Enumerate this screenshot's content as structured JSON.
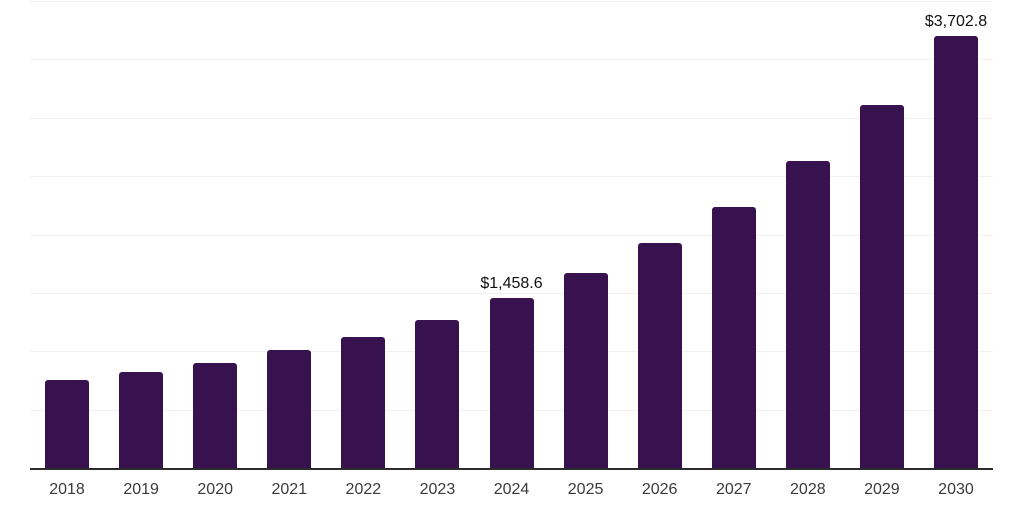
{
  "chart_data": {
    "type": "bar",
    "title": "",
    "xlabel": "",
    "ylabel": "",
    "categories": [
      "2018",
      "2019",
      "2020",
      "2021",
      "2022",
      "2023",
      "2024",
      "2025",
      "2026",
      "2027",
      "2028",
      "2029",
      "2030"
    ],
    "values": [
      750,
      822,
      903,
      1010,
      1126,
      1268,
      1458.6,
      1673,
      1924,
      2238,
      2629,
      3108,
      3702.8
    ],
    "data_labels": [
      "",
      "",
      "",
      "",
      "",
      "",
      "$1,458.6",
      "",
      "",
      "",
      "",
      "",
      "$3,702.8"
    ],
    "ylim": [
      0,
      4000
    ],
    "gridline_interval": 500,
    "grid": true,
    "y_tick_labels_visible": false,
    "legend_position": "none"
  },
  "style": {
    "bar_color": "#37124e",
    "gridline_color": "#f1f1f1",
    "axis_line_color": "#2b2b2b",
    "tick_label_color": "#3a3a3a",
    "data_label_color": "#111111",
    "background_color": "#ffffff"
  }
}
